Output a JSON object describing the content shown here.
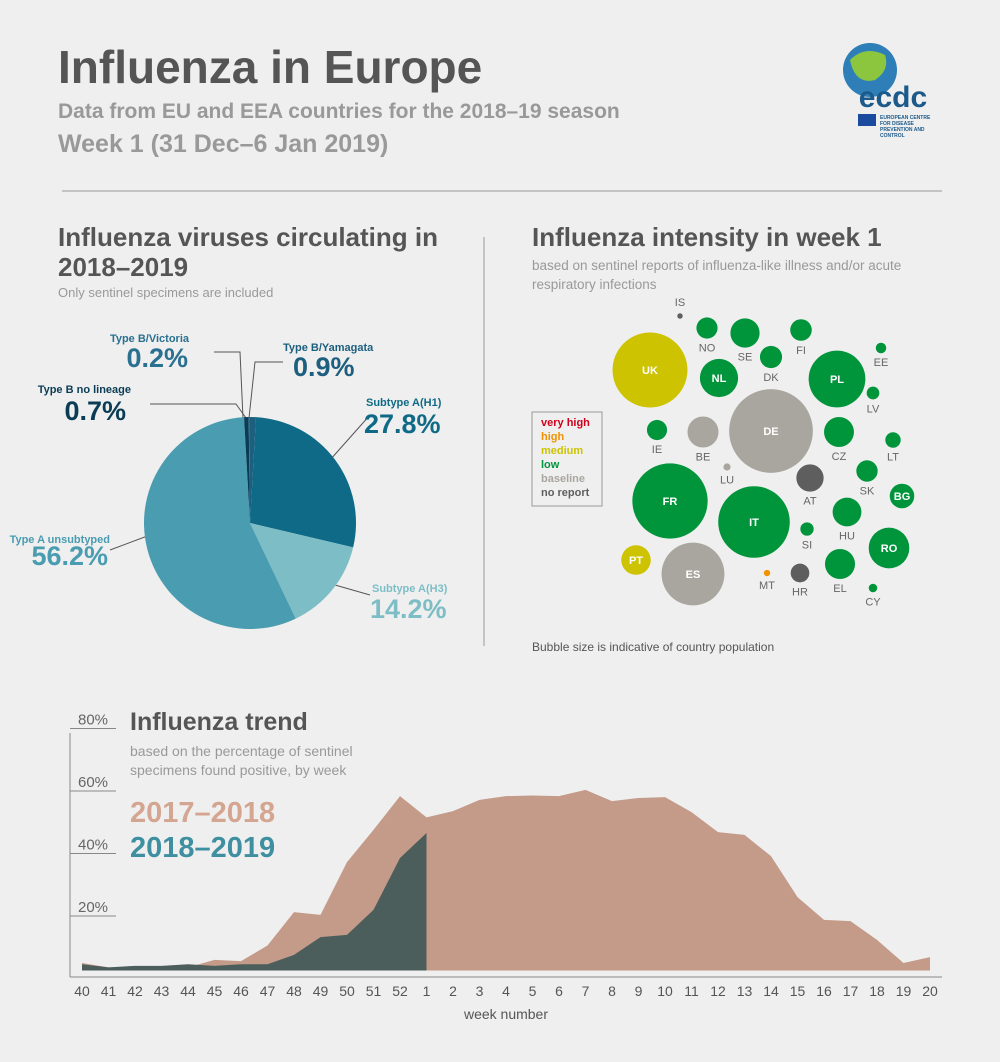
{
  "header": {
    "title": "Influenza in Europe",
    "subtitle": "Data from EU and EEA countries for the 2018–19 season",
    "week": "Week 1 (31 Dec–6 Jan 2019)",
    "logo": {
      "name": "ecdc",
      "text": "EUROPEAN CENTRE FOR DISEASE PREVENTION AND CONTROL"
    }
  },
  "chart_data": [
    {
      "type": "pie",
      "title": "Influenza viruses circulating in 2018–2019",
      "subtitle": "Only sentinel specimens are included",
      "categories": [
        "Type B/Yamagata",
        "Subtype A(H1)",
        "Subtype A(H3)",
        "Type A unsubtyped",
        "Type B no lineage",
        "Type B/Victoria"
      ],
      "values": [
        0.9,
        27.8,
        14.2,
        56.2,
        0.7,
        0.2
      ],
      "value_labels": [
        "0.9%",
        "27.8%",
        "14.2%",
        "56.2%",
        "0.7%",
        "0.2%"
      ],
      "colors": [
        "#1d5f7e",
        "#0e6a86",
        "#7dbec6",
        "#4a9cb1",
        "#0a3d55",
        "#2a7090"
      ]
    },
    {
      "type": "bubble",
      "title": "Influenza intensity in week 1",
      "subtitle": "based on sentinel reports of influenza-like illness and/or acute respiratory infections",
      "note": "Bubble size is indicative of country population",
      "categories": [
        "IS",
        "NO",
        "SE",
        "FI",
        "DK",
        "EE",
        "UK",
        "NL",
        "PL",
        "LV",
        "DE",
        "IE",
        "BE",
        "CZ",
        "LT",
        "LU",
        "SK",
        "FR",
        "IT",
        "AT",
        "BG",
        "HU",
        "SI",
        "RO",
        "PT",
        "ES",
        "MT",
        "HR",
        "EL",
        "CY"
      ],
      "values": [
        0.35,
        5.3,
        10.1,
        5.5,
        5.8,
        1.3,
        66.3,
        17.2,
        38,
        1.9,
        82.8,
        4.8,
        11.4,
        10.6,
        2.8,
        0.6,
        5.4,
        67,
        60.5,
        8.8,
        7.1,
        9.8,
        2.1,
        19.5,
        10.3,
        46.7,
        0.48,
        4.1,
        10.7,
        0.86
      ],
      "levels": [
        "no report",
        "low",
        "low",
        "low",
        "low",
        "low",
        "medium",
        "low",
        "low",
        "low",
        "baseline",
        "low",
        "baseline",
        "low",
        "low",
        "baseline",
        "low",
        "low",
        "low",
        "no report",
        "low",
        "low",
        "low",
        "low",
        "medium",
        "baseline",
        "high",
        "no report",
        "low",
        "low"
      ],
      "legend": [
        {
          "name": "very high",
          "color": "#d0021b"
        },
        {
          "name": "high",
          "color": "#f39200"
        },
        {
          "name": "medium",
          "color": "#cdc300"
        },
        {
          "name": "low",
          "color": "#00953b"
        },
        {
          "name": "baseline",
          "color": "#a9a69f"
        },
        {
          "name": "no report",
          "color": "#5e5e5e"
        }
      ]
    },
    {
      "type": "area",
      "title": "Influenza trend",
      "subtitle": "based on the percentage of sentinel specimens found positive, by week",
      "x_label": "week number",
      "categories": [
        "40",
        "41",
        "42",
        "43",
        "44",
        "45",
        "46",
        "47",
        "48",
        "49",
        "50",
        "51",
        "52",
        "1",
        "2",
        "3",
        "4",
        "5",
        "6",
        "7",
        "8",
        "9",
        "10",
        "11",
        "12",
        "13",
        "14",
        "15",
        "16",
        "17",
        "18",
        "19",
        "20"
      ],
      "series": [
        {
          "name": "2017–2018",
          "color": "#c49a88",
          "legend_color": "#d4a590",
          "values": [
            2.4,
            1,
            1,
            1,
            1,
            3.4,
            3,
            8,
            18.7,
            17.8,
            34.7,
            45,
            55.8,
            49,
            51,
            54.6,
            55.8,
            56,
            55.8,
            57.8,
            54.2,
            55.2,
            55.5,
            50.7,
            44.3,
            43.4,
            36.6,
            23.5,
            16.2,
            15.8,
            9.8,
            2.4,
            4.3
          ]
        },
        {
          "name": "2018–2019",
          "color": "#4b5e5b",
          "legend_color": "#3e8fa0",
          "values": [
            2,
            1,
            1.5,
            1.5,
            2,
            1.5,
            2,
            2,
            5,
            10.7,
            11.4,
            19.4,
            36,
            44,
            null,
            null,
            null,
            null,
            null,
            null,
            null,
            null,
            null,
            null,
            null,
            null,
            null,
            null,
            null,
            null,
            null,
            null,
            null
          ]
        }
      ],
      "ylim": [
        0,
        80
      ],
      "yticks": [
        {
          "value": 20,
          "label": "20%"
        },
        {
          "value": 40,
          "label": "40%"
        },
        {
          "value": 60,
          "label": "60%"
        },
        {
          "value": 80,
          "label": "80%"
        }
      ]
    }
  ]
}
